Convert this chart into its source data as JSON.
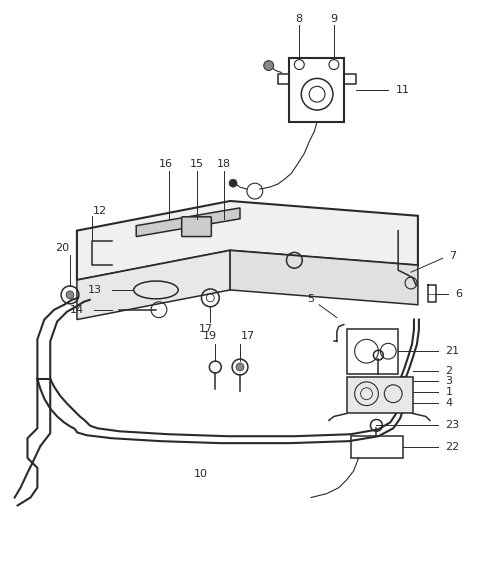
{
  "bg_color": "#ffffff",
  "line_color": "#2a2a2a",
  "fig_width": 4.8,
  "fig_height": 5.69,
  "dpi": 100
}
